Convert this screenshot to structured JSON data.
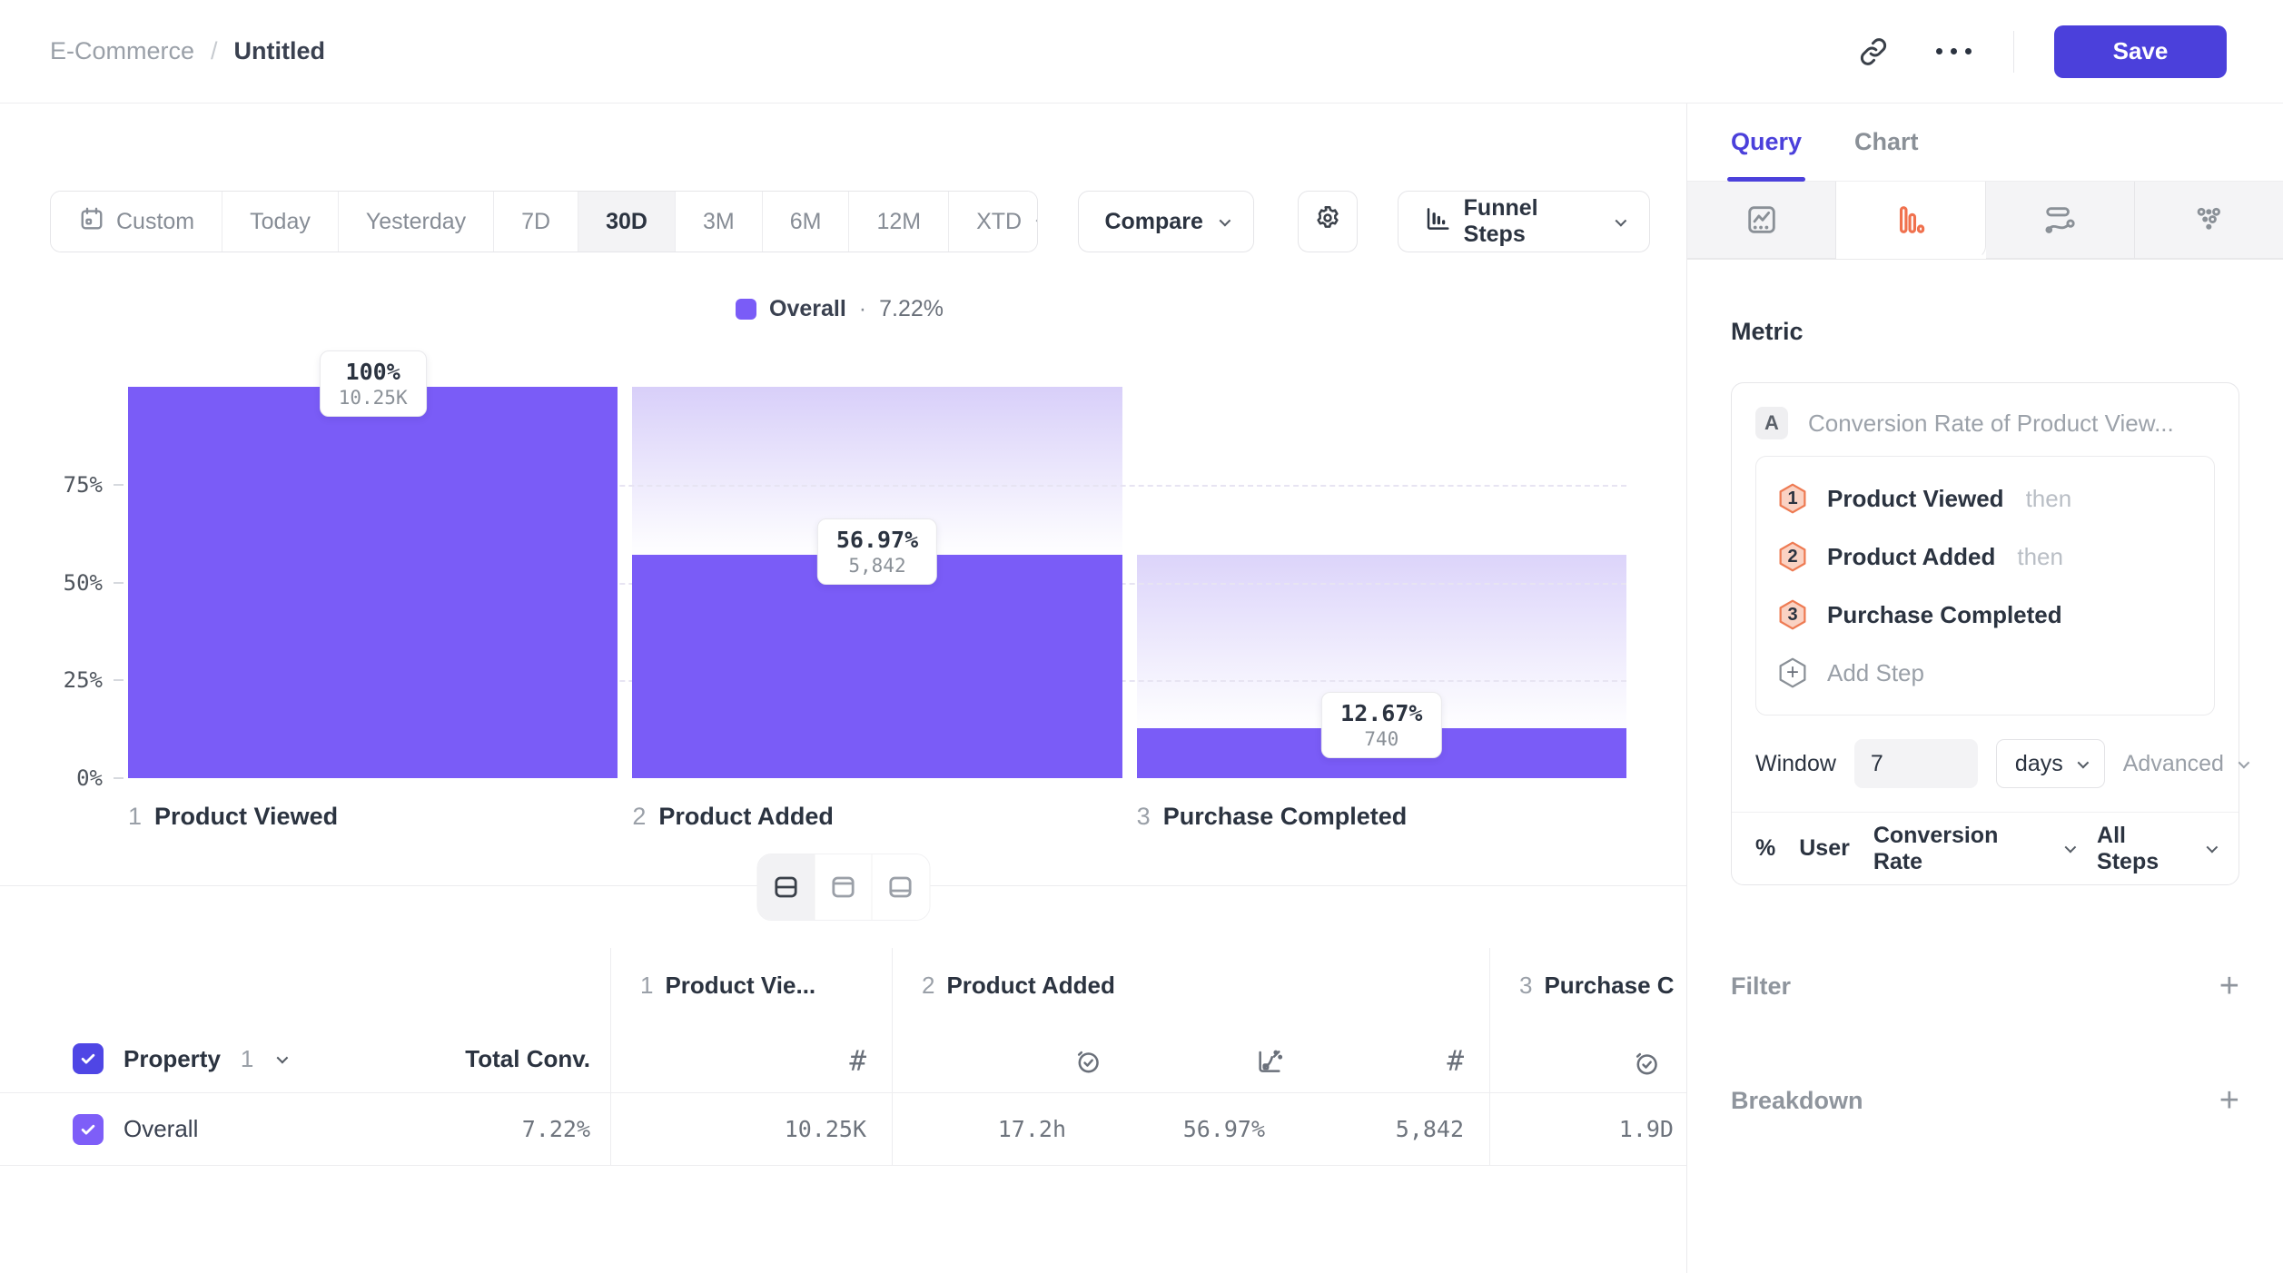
{
  "colors": {
    "accent": "#4B40DB",
    "bar": "#7A5CF7",
    "bar_ghost_top": "#D8CFF9",
    "row_checkbox": "#7E5EF8",
    "header_checkbox": "#4F46E5",
    "step_badge_fill": "#FAD2C3",
    "step_badge_border": "#EE7B53",
    "funnel_icon_active": "#F0714E"
  },
  "topbar": {
    "breadcrumb_parent": "E-Commerce",
    "breadcrumb_sep": "/",
    "title": "Untitled",
    "save_label": "Save"
  },
  "toolbar": {
    "ranges": [
      "Custom",
      "Today",
      "Yesterday",
      "7D",
      "30D",
      "3M",
      "6M",
      "12M",
      "XTD"
    ],
    "active_range": "30D",
    "compare_label": "Compare",
    "chart_type_label": "Funnel Steps"
  },
  "chart_data": {
    "type": "bar",
    "subtype": "funnel-steps",
    "legend": {
      "label": "Overall",
      "sep": "·",
      "value": "7.22%",
      "position": "top-center"
    },
    "steps": [
      {
        "num": "1",
        "label": "Product Viewed"
      },
      {
        "num": "2",
        "label": "Product Added"
      },
      {
        "num": "3",
        "label": "Purchase Completed"
      }
    ],
    "categories": [
      "1 Product Viewed",
      "2 Product Added",
      "3 Purchase Completed"
    ],
    "series": [
      {
        "name": "Overall",
        "values": [
          100,
          56.97,
          12.67
        ]
      }
    ],
    "value_labels": [
      {
        "pct": "100%",
        "count": "10.25K"
      },
      {
        "pct": "56.97%",
        "count": "5,842"
      },
      {
        "pct": "12.67%",
        "count": "740"
      }
    ],
    "yticks": [
      "75%",
      "50%",
      "25%",
      "0%"
    ],
    "ylim": [
      0,
      100
    ],
    "grid": "dashed-horizontal-25-50-75"
  },
  "table": {
    "header": {
      "property_label": "Property",
      "property_index": "1",
      "total_conv_label": "Total Conv."
    },
    "columns": [
      {
        "num": "1",
        "label": "Product Vie...",
        "sub_icons": [
          "count"
        ]
      },
      {
        "num": "2",
        "label": "Product Added",
        "sub_icons": [
          "time-to-convert",
          "conversion",
          "count"
        ]
      },
      {
        "num": "3",
        "label": "Purchase C",
        "sub_icons": [
          "time-to-convert"
        ]
      }
    ],
    "row": {
      "label": "Overall",
      "total_conv": "7.22%",
      "step1_count": "10.25K",
      "step2_time": "17.2h",
      "step2_conv": "56.97%",
      "step2_count": "5,842",
      "step3_time": "1.9D"
    }
  },
  "panel": {
    "tabs": [
      {
        "label": "Query",
        "active": true
      },
      {
        "label": "Chart",
        "active": false
      }
    ],
    "chart_type_icons": [
      "line-chart",
      "funnel",
      "journeys",
      "grid"
    ],
    "active_chart_type": "funnel",
    "metric": {
      "heading": "Metric",
      "series_badge": "A",
      "series_name": "Conversion Rate of Product View...",
      "steps": [
        {
          "num": "1",
          "name": "Product Viewed",
          "suffix": "then"
        },
        {
          "num": "2",
          "name": "Product Added",
          "suffix": "then"
        },
        {
          "num": "3",
          "name": "Purchase Completed",
          "suffix": ""
        }
      ],
      "add_step_label": "Add Step",
      "window_label": "Window",
      "window_value": "7",
      "window_unit": "days",
      "advanced_label": "Advanced",
      "footer": {
        "percent": "%",
        "user": "User",
        "measure": "Conversion Rate",
        "scope": "All Steps"
      }
    },
    "filter_label": "Filter",
    "breakdown_label": "Breakdown"
  }
}
